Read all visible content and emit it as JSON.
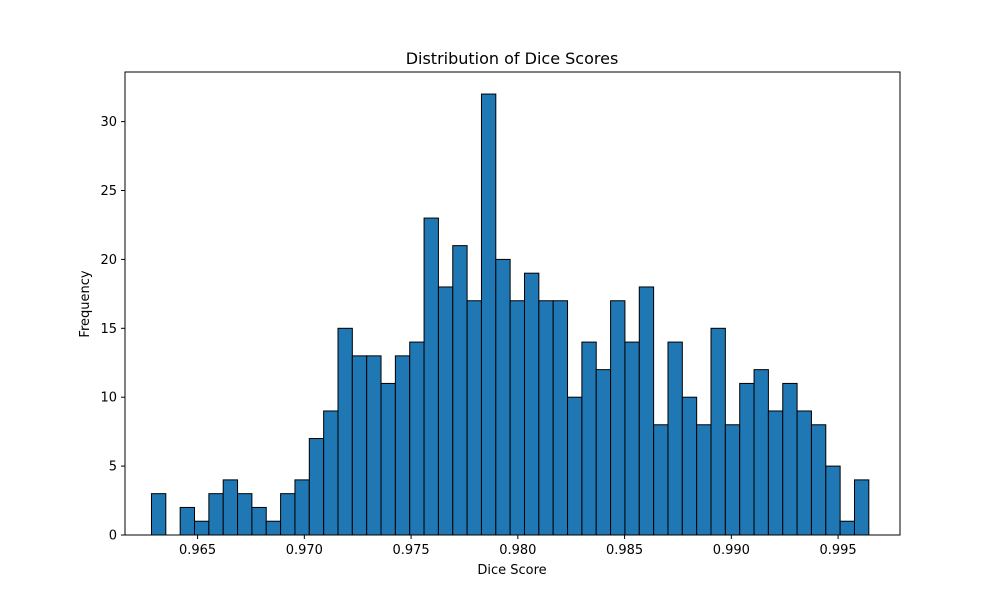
{
  "chart_data": {
    "type": "bar",
    "subtype": "histogram",
    "title": "Distribution of Dice Scores",
    "xlabel": "Dice Score",
    "ylabel": "Frequency",
    "xlim": [
      0.9616,
      0.9979
    ],
    "ylim": [
      0,
      33.6
    ],
    "xticks": [
      0.965,
      0.97,
      0.975,
      0.98,
      0.985,
      0.99,
      0.995
    ],
    "xtick_labels": [
      "0.965",
      "0.970",
      "0.975",
      "0.980",
      "0.985",
      "0.990",
      "0.995"
    ],
    "yticks": [
      0,
      5,
      10,
      15,
      20,
      25,
      30
    ],
    "ytick_labels": [
      "0",
      "5",
      "10",
      "15",
      "20",
      "25",
      "30"
    ],
    "bin_start": 0.96284,
    "bin_width": 0.000672,
    "values": [
      3,
      0,
      2,
      1,
      3,
      4,
      3,
      2,
      1,
      3,
      4,
      7,
      9,
      15,
      13,
      13,
      11,
      13,
      14,
      23,
      18,
      21,
      17,
      32,
      20,
      17,
      19,
      17,
      17,
      10,
      14,
      12,
      17,
      14,
      18,
      8,
      14,
      10,
      8,
      15,
      8,
      11,
      12,
      9,
      11,
      9,
      8,
      5,
      1,
      4
    ],
    "bar_color": "#1f77b4",
    "edge_color": "#000000",
    "grid": false,
    "legend": "none"
  }
}
